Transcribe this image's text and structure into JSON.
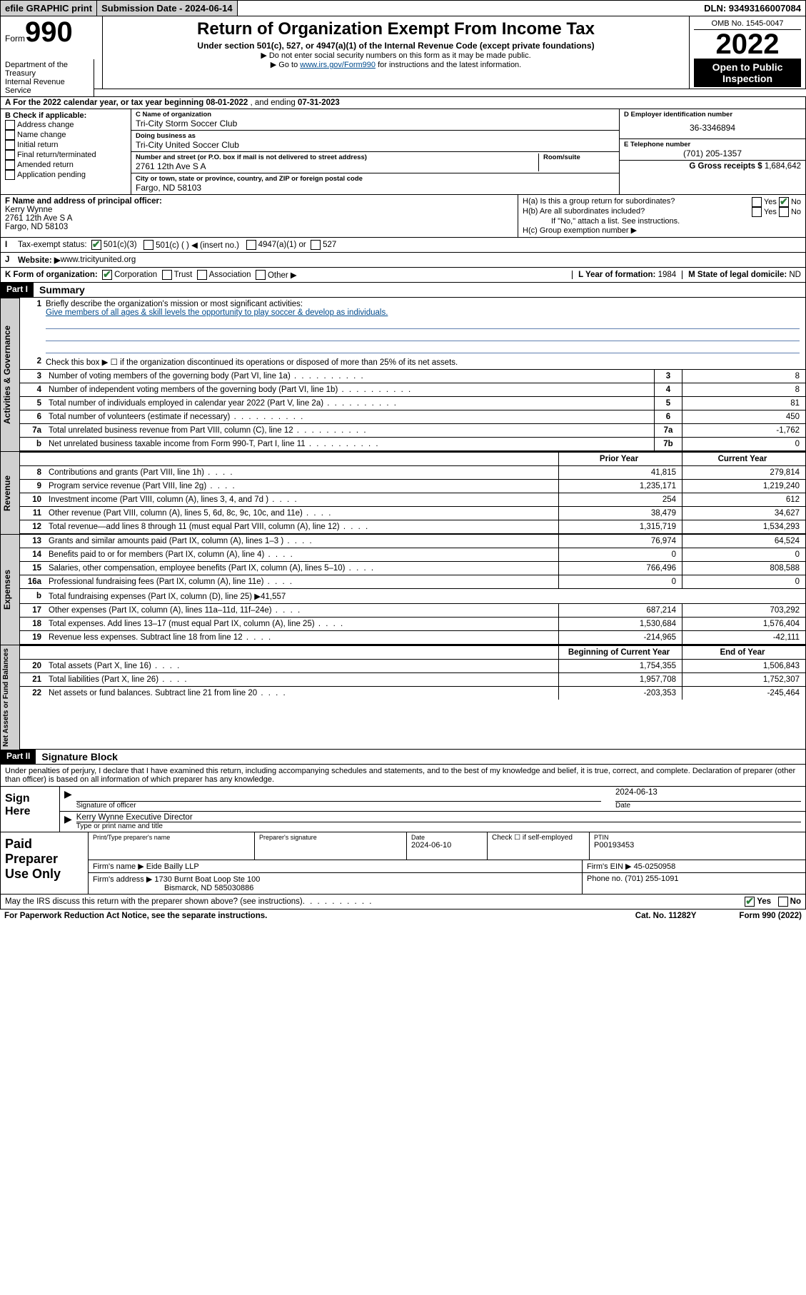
{
  "topbar": {
    "efile": "efile GRAPHIC print",
    "submission_label": "Submission Date - 2024-06-14",
    "dln": "DLN: 93493166007084"
  },
  "header": {
    "form": "Form",
    "num": "990",
    "title": "Return of Organization Exempt From Income Tax",
    "subtitle": "Under section 501(c), 527, or 4947(a)(1) of the Internal Revenue Code (except private foundations)",
    "warn1": "▶ Do not enter social security numbers on this form as it may be made public.",
    "warn2a": "▶ Go to ",
    "warn2_link": "www.irs.gov/Form990",
    "warn2b": " for instructions and the latest information.",
    "omb": "OMB No. 1545-0047",
    "year": "2022",
    "open": "Open to Public Inspection",
    "dept": "Department of the Treasury\nInternal Revenue Service"
  },
  "A": {
    "label": "A For the 2022 calendar year, or tax year beginning ",
    "begin": "08-01-2022",
    "mid": " , and ending ",
    "end": "07-31-2023"
  },
  "B": {
    "label": "B Check if applicable:",
    "items": [
      "Address change",
      "Name change",
      "Initial return",
      "Final return/terminated",
      "Amended return",
      "Application pending"
    ]
  },
  "C": {
    "name_lbl": "C Name of organization",
    "name": "Tri-City Storm Soccer Club",
    "dba_lbl": "Doing business as",
    "dba": "Tri-City United Soccer Club",
    "addr_lbl": "Number and street (or P.O. box if mail is not delivered to street address)",
    "room_lbl": "Room/suite",
    "addr": "2761 12th Ave S A",
    "city_lbl": "City or town, state or province, country, and ZIP or foreign postal code",
    "city": "Fargo, ND  58103"
  },
  "D": {
    "lbl": "D Employer identification number",
    "val": "36-3346894"
  },
  "E": {
    "lbl": "E Telephone number",
    "val": "(701) 205-1357"
  },
  "G": {
    "lbl": "G Gross receipts $ ",
    "val": "1,684,642"
  },
  "F": {
    "lbl": "F Name and address of principal officer:",
    "name": "Kerry Wynne",
    "addr": "2761 12th Ave S A",
    "city": "Fargo, ND  58103"
  },
  "H": {
    "a": "H(a)  Is this a group return for subordinates?",
    "b": "H(b)  Are all subordinates included?",
    "b_note": "If \"No,\" attach a list. See instructions.",
    "c": "H(c)  Group exemption number ▶"
  },
  "I": {
    "lbl": "Tax-exempt status:",
    "opts": [
      "501(c)(3)",
      "501(c) (  ) ◀ (insert no.)",
      "4947(a)(1) or",
      "527"
    ]
  },
  "J": {
    "lbl": "Website: ▶ ",
    "val": "www.tricityunited.org"
  },
  "K": {
    "lbl": "K Form of organization:",
    "opts": [
      "Corporation",
      "Trust",
      "Association",
      "Other ▶"
    ]
  },
  "L": {
    "lbl": "L Year of formation: ",
    "val": "1984"
  },
  "M": {
    "lbl": "M State of legal domicile: ",
    "val": "ND"
  },
  "partI": {
    "hdr": "Part I",
    "title": "Summary",
    "line1_lbl": "Briefly describe the organization's mission or most significant activities:",
    "line1_val": "Give members of all ages & skill levels the opportunity to play soccer & develop as individuals.",
    "line2": "Check this box ▶ ☐  if the organization discontinued its operations or disposed of more than 25% of its net assets.",
    "tabs": {
      "gov": "Activities & Governance",
      "rev": "Revenue",
      "exp": "Expenses",
      "net": "Net Assets or Fund Balances"
    },
    "gov_lines": [
      {
        "n": "3",
        "d": "Number of voting members of the governing body (Part VI, line 1a)",
        "b": "3",
        "v": "8"
      },
      {
        "n": "4",
        "d": "Number of independent voting members of the governing body (Part VI, line 1b)",
        "b": "4",
        "v": "8"
      },
      {
        "n": "5",
        "d": "Total number of individuals employed in calendar year 2022 (Part V, line 2a)",
        "b": "5",
        "v": "81"
      },
      {
        "n": "6",
        "d": "Total number of volunteers (estimate if necessary)",
        "b": "6",
        "v": "450"
      },
      {
        "n": "7a",
        "d": "Total unrelated business revenue from Part VIII, column (C), line 12",
        "b": "7a",
        "v": "-1,762"
      },
      {
        "n": "b",
        "d": "Net unrelated business taxable income from Form 990-T, Part I, line 11",
        "b": "7b",
        "v": "0"
      }
    ],
    "prior": "Prior Year",
    "current": "Current Year",
    "rev_lines": [
      {
        "n": "8",
        "d": "Contributions and grants (Part VIII, line 1h)",
        "p": "41,815",
        "c": "279,814"
      },
      {
        "n": "9",
        "d": "Program service revenue (Part VIII, line 2g)",
        "p": "1,235,171",
        "c": "1,219,240"
      },
      {
        "n": "10",
        "d": "Investment income (Part VIII, column (A), lines 3, 4, and 7d )",
        "p": "254",
        "c": "612"
      },
      {
        "n": "11",
        "d": "Other revenue (Part VIII, column (A), lines 5, 6d, 8c, 9c, 10c, and 11e)",
        "p": "38,479",
        "c": "34,627"
      },
      {
        "n": "12",
        "d": "Total revenue—add lines 8 through 11 (must equal Part VIII, column (A), line 12)",
        "p": "1,315,719",
        "c": "1,534,293"
      }
    ],
    "exp_lines": [
      {
        "n": "13",
        "d": "Grants and similar amounts paid (Part IX, column (A), lines 1–3 )",
        "p": "76,974",
        "c": "64,524"
      },
      {
        "n": "14",
        "d": "Benefits paid to or for members (Part IX, column (A), line 4)",
        "p": "0",
        "c": "0"
      },
      {
        "n": "15",
        "d": "Salaries, other compensation, employee benefits (Part IX, column (A), lines 5–10)",
        "p": "766,496",
        "c": "808,588"
      },
      {
        "n": "16a",
        "d": "Professional fundraising fees (Part IX, column (A), line 11e)",
        "p": "0",
        "c": "0"
      },
      {
        "n": "b",
        "d": "Total fundraising expenses (Part IX, column (D), line 25) ▶41,557",
        "p": "",
        "c": "",
        "noval": true
      },
      {
        "n": "17",
        "d": "Other expenses (Part IX, column (A), lines 11a–11d, 11f–24e)",
        "p": "687,214",
        "c": "703,292"
      },
      {
        "n": "18",
        "d": "Total expenses. Add lines 13–17 (must equal Part IX, column (A), line 25)",
        "p": "1,530,684",
        "c": "1,576,404"
      },
      {
        "n": "19",
        "d": "Revenue less expenses. Subtract line 18 from line 12",
        "p": "-214,965",
        "c": "-42,111"
      }
    ],
    "begin": "Beginning of Current Year",
    "end": "End of Year",
    "net_lines": [
      {
        "n": "20",
        "d": "Total assets (Part X, line 16)",
        "p": "1,754,355",
        "c": "1,506,843"
      },
      {
        "n": "21",
        "d": "Total liabilities (Part X, line 26)",
        "p": "1,957,708",
        "c": "1,752,307"
      },
      {
        "n": "22",
        "d": "Net assets or fund balances. Subtract line 21 from line 20",
        "p": "-203,353",
        "c": "-245,464"
      }
    ]
  },
  "partII": {
    "hdr": "Part II",
    "title": "Signature Block",
    "decl": "Under penalties of perjury, I declare that I have examined this return, including accompanying schedules and statements, and to the best of my knowledge and belief, it is true, correct, and complete. Declaration of preparer (other than officer) is based on all information of which preparer has any knowledge."
  },
  "sig": {
    "here": "Sign Here",
    "sig_lbl": "Signature of officer",
    "date_lbl": "Date",
    "date": "2024-06-13",
    "name": "Kerry Wynne  Executive Director",
    "name_lbl": "Type or print name and title"
  },
  "prep": {
    "left": "Paid Preparer Use Only",
    "r1": {
      "c1_lbl": "Print/Type preparer's name",
      "c1": "",
      "c2_lbl": "Preparer's signature",
      "c2": "",
      "c3_lbl": "Date",
      "c3": "2024-06-10",
      "c4_lbl": "Check ☐ if self-employed",
      "c5_lbl": "PTIN",
      "c5": "P00193453"
    },
    "r2": {
      "a_lbl": "Firm's name      ▶ ",
      "a": "Eide Bailly LLP",
      "b_lbl": "Firm's EIN ▶ ",
      "b": "45-0250958"
    },
    "r3": {
      "a_lbl": "Firm's address ▶ ",
      "a1": "1730 Burnt Boat Loop Ste 100",
      "a2": "Bismarck, ND  585030886",
      "b_lbl": "Phone no. ",
      "b": "(701) 255-1091"
    }
  },
  "footer": {
    "q": "May the IRS discuss this return with the preparer shown above? (see instructions)",
    "yes": "Yes",
    "no": "No",
    "pra": "For Paperwork Reduction Act Notice, see the separate instructions.",
    "cat": "Cat. No. 11282Y",
    "form": "Form 990 (2022)"
  }
}
